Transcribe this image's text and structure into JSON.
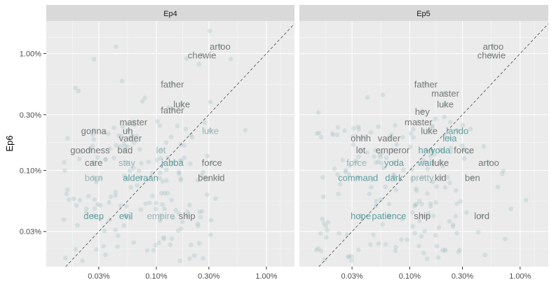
{
  "chart_data": {
    "type": "scatter",
    "ylabel": "Ep6",
    "xlabel": "",
    "scale": "log10",
    "xlim": [
      0.0001,
      0.018
    ],
    "ylim": [
      0.00015,
      0.019
    ],
    "x_ticks": [
      {
        "value": 0.0003,
        "label": "0.03%"
      },
      {
        "value": 0.001,
        "label": "0.10%"
      },
      {
        "value": 0.003,
        "label": "0.30%"
      },
      {
        "value": 0.01,
        "label": "1.00%"
      }
    ],
    "y_ticks": [
      {
        "value": 0.0003,
        "label": "0.03%"
      },
      {
        "value": 0.001,
        "label": "0.10%"
      },
      {
        "value": 0.003,
        "label": "0.30%"
      },
      {
        "value": 0.01,
        "label": "1.00%"
      }
    ],
    "reference_line": "y = x (dashed)",
    "colors": {
      "panel": "#ebebeb",
      "strip": "#d9d9d9",
      "grid": "#ffffff",
      "point": "#a8c4c4",
      "word_gray": "#777777",
      "word_teal": "#5f9ea0",
      "word_light": "#9ab5b5"
    },
    "panels": [
      {
        "strip": "Ep4",
        "words": [
          {
            "text": "artoo",
            "x": 0.0038,
            "y": 0.0116,
            "tone": "gray"
          },
          {
            "text": "chewie",
            "x": 0.0026,
            "y": 0.0097,
            "tone": "gray"
          },
          {
            "text": "father",
            "x": 0.0014,
            "y": 0.0055,
            "tone": "gray"
          },
          {
            "text": "luke",
            "x": 0.0017,
            "y": 0.0037,
            "tone": "gray"
          },
          {
            "text": "father",
            "x": 0.0014,
            "y": 0.0033,
            "tone": "gray"
          },
          {
            "text": "master",
            "x": 0.00062,
            "y": 0.0026,
            "tone": "gray"
          },
          {
            "text": "gonna",
            "x": 0.00027,
            "y": 0.0022,
            "tone": "gray"
          },
          {
            "text": "uh",
            "x": 0.00055,
            "y": 0.0022,
            "tone": "gray"
          },
          {
            "text": "luke",
            "x": 0.0031,
            "y": 0.0022,
            "tone": "light"
          },
          {
            "text": "vader",
            "x": 0.00058,
            "y": 0.0019,
            "tone": "gray"
          },
          {
            "text": "goodness",
            "x": 0.00025,
            "y": 0.0015,
            "tone": "gray"
          },
          {
            "text": "bad",
            "x": 0.00052,
            "y": 0.0015,
            "tone": "gray"
          },
          {
            "text": "lot",
            "x": 0.0011,
            "y": 0.0015,
            "tone": "light"
          },
          {
            "text": "care",
            "x": 0.00027,
            "y": 0.00117,
            "tone": "gray"
          },
          {
            "text": "stay",
            "x": 0.00054,
            "y": 0.00117,
            "tone": "light"
          },
          {
            "text": "jabba",
            "x": 0.0014,
            "y": 0.00117,
            "tone": "teal"
          },
          {
            "text": "force",
            "x": 0.0032,
            "y": 0.00117,
            "tone": "gray"
          },
          {
            "text": "born",
            "x": 0.00027,
            "y": 0.00087,
            "tone": "light"
          },
          {
            "text": "alderaan",
            "x": 0.00072,
            "y": 0.00087,
            "tone": "teal"
          },
          {
            "text": "ben",
            "x": 0.0028,
            "y": 0.00087,
            "tone": "gray"
          },
          {
            "text": "kid",
            "x": 0.0037,
            "y": 0.00087,
            "tone": "gray"
          },
          {
            "text": "deep",
            "x": 0.00027,
            "y": 0.00041,
            "tone": "teal"
          },
          {
            "text": "evil",
            "x": 0.00053,
            "y": 0.00041,
            "tone": "teal"
          },
          {
            "text": "empire",
            "x": 0.0011,
            "y": 0.00041,
            "tone": "light"
          },
          {
            "text": "ship",
            "x": 0.0019,
            "y": 0.00041,
            "tone": "gray"
          }
        ]
      },
      {
        "strip": "Ep5",
        "words": [
          {
            "text": "artoo",
            "x": 0.0057,
            "y": 0.0116,
            "tone": "gray"
          },
          {
            "text": "chewie",
            "x": 0.0055,
            "y": 0.0097,
            "tone": "gray"
          },
          {
            "text": "father",
            "x": 0.0014,
            "y": 0.0055,
            "tone": "gray"
          },
          {
            "text": "master",
            "x": 0.0021,
            "y": 0.0046,
            "tone": "gray"
          },
          {
            "text": "luke",
            "x": 0.0021,
            "y": 0.0037,
            "tone": "gray"
          },
          {
            "text": "hey",
            "x": 0.0013,
            "y": 0.0032,
            "tone": "gray"
          },
          {
            "text": "master",
            "x": 0.0012,
            "y": 0.0026,
            "tone": "gray"
          },
          {
            "text": "luke",
            "x": 0.0015,
            "y": 0.0022,
            "tone": "gray"
          },
          {
            "text": "lando",
            "x": 0.0027,
            "y": 0.0022,
            "tone": "teal"
          },
          {
            "text": "ohhh",
            "x": 0.00036,
            "y": 0.0019,
            "tone": "gray"
          },
          {
            "text": "vader",
            "x": 0.00065,
            "y": 0.0019,
            "tone": "gray"
          },
          {
            "text": "leia",
            "x": 0.0023,
            "y": 0.0019,
            "tone": "teal"
          },
          {
            "text": "lot",
            "x": 0.00036,
            "y": 0.0015,
            "tone": "gray"
          },
          {
            "text": "emperor",
            "x": 0.0007,
            "y": 0.0015,
            "tone": "gray"
          },
          {
            "text": "han",
            "x": 0.0014,
            "y": 0.0015,
            "tone": "teal"
          },
          {
            "text": "yoda",
            "x": 0.0019,
            "y": 0.0015,
            "tone": "teal"
          },
          {
            "text": "force",
            "x": 0.0031,
            "y": 0.0015,
            "tone": "gray"
          },
          {
            "text": "force",
            "x": 0.00033,
            "y": 0.00117,
            "tone": "light"
          },
          {
            "text": "yoda",
            "x": 0.00072,
            "y": 0.00117,
            "tone": "teal"
          },
          {
            "text": "wait",
            "x": 0.0014,
            "y": 0.00117,
            "tone": "teal"
          },
          {
            "text": "luke",
            "x": 0.0019,
            "y": 0.00117,
            "tone": "gray"
          },
          {
            "text": "artoo",
            "x": 0.0052,
            "y": 0.00117,
            "tone": "gray"
          },
          {
            "text": "command",
            "x": 0.00034,
            "y": 0.00087,
            "tone": "teal"
          },
          {
            "text": "dark",
            "x": 0.00072,
            "y": 0.00087,
            "tone": "teal"
          },
          {
            "text": "pretty",
            "x": 0.0013,
            "y": 0.00087,
            "tone": "light"
          },
          {
            "text": "kid",
            "x": 0.0019,
            "y": 0.00087,
            "tone": "gray"
          },
          {
            "text": "ben",
            "x": 0.0037,
            "y": 0.00087,
            "tone": "gray"
          },
          {
            "text": "hope",
            "x": 0.00036,
            "y": 0.00041,
            "tone": "teal"
          },
          {
            "text": "patience",
            "x": 0.00065,
            "y": 0.00041,
            "tone": "teal"
          },
          {
            "text": "ship",
            "x": 0.0013,
            "y": 0.00041,
            "tone": "gray"
          },
          {
            "text": "lord",
            "x": 0.0045,
            "y": 0.00041,
            "tone": "gray"
          }
        ]
      }
    ]
  }
}
